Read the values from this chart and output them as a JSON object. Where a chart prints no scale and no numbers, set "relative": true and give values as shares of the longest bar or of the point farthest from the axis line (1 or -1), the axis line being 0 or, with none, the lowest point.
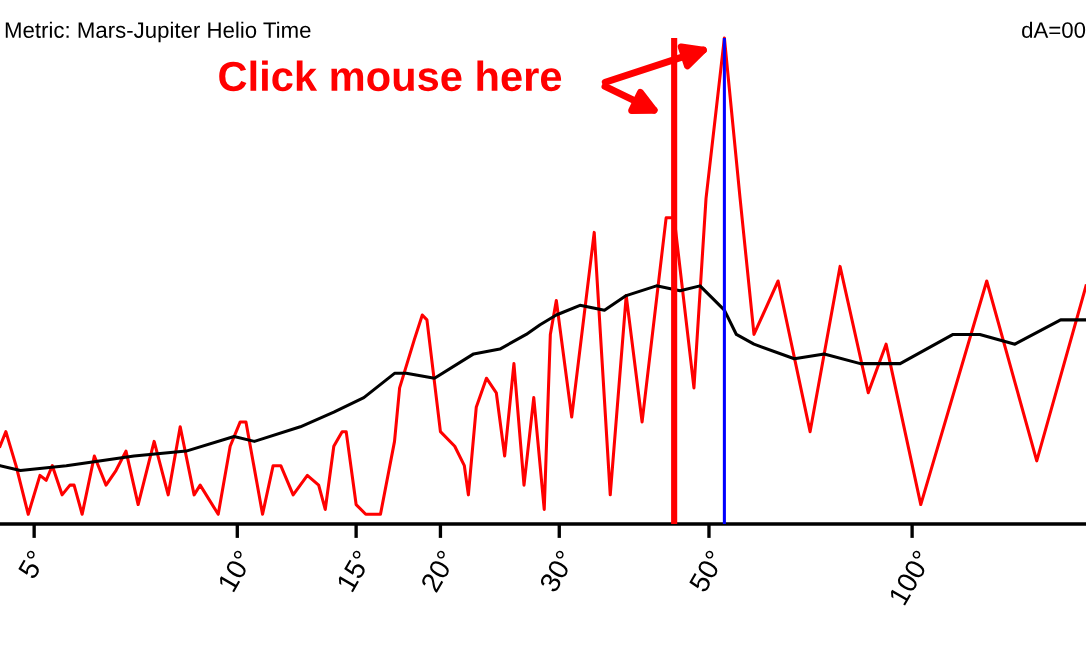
{
  "chart_data": {
    "type": "line",
    "title": "Metric: Mars-Jupiter Helio Time",
    "relative": true,
    "log": "x",
    "xlim": [
      4.45,
      181
    ],
    "xticks": [
      {
        "value": 5,
        "label": "5°"
      },
      {
        "value": 10,
        "label": "10°"
      },
      {
        "value": 15,
        "label": "15°"
      },
      {
        "value": 20,
        "label": "20°"
      },
      {
        "value": 30,
        "label": "30°"
      },
      {
        "value": 50,
        "label": "50°"
      },
      {
        "value": 100,
        "label": "100°"
      }
    ],
    "tick_labels": "x",
    "grid": false,
    "marker": "none",
    "line_style": "solid",
    "series": [
      {
        "color": "#ff0000",
        "x": [
          4.45,
          4.54,
          4.7,
          4.9,
          5.1,
          5.21,
          5.32,
          5.5,
          5.65,
          5.73,
          5.89,
          6.14,
          6.39,
          6.61,
          6.84,
          7.13,
          7.53,
          7.9,
          8.23,
          8.63,
          8.81,
          9.37,
          9.76,
          10.1,
          10.3,
          10.9,
          11.3,
          11.6,
          12.1,
          12.7,
          13.2,
          13.5,
          13.9,
          14.3,
          14.5,
          15.0,
          15.5,
          16.3,
          17.1,
          17.4,
          18.3,
          18.8,
          19.1,
          20.0,
          21.0,
          21.7,
          22.0,
          22.6,
          23.4,
          24.2,
          24.9,
          25.7,
          26.6,
          27.5,
          28.5,
          29.1,
          29.7,
          31.3,
          33.8,
          35.7,
          37.7,
          39.8,
          43.2,
          44.4,
          47.5,
          49.5,
          52.7,
          55.6,
          58.3,
          63.3,
          70.6,
          78.2,
          86.1,
          91.5,
          103,
          129,
          153,
          181
        ],
        "values": [
          0.16,
          0.19,
          0.12,
          0.02,
          0.1,
          0.09,
          0.12,
          0.06,
          0.08,
          0.08,
          0.02,
          0.14,
          0.08,
          0.11,
          0.15,
          0.04,
          0.17,
          0.06,
          0.2,
          0.06,
          0.08,
          0.02,
          0.16,
          0.21,
          0.21,
          0.02,
          0.12,
          0.12,
          0.06,
          0.1,
          0.08,
          0.03,
          0.16,
          0.19,
          0.19,
          0.04,
          0.02,
          0.02,
          0.17,
          0.28,
          0.38,
          0.43,
          0.42,
          0.19,
          0.16,
          0.12,
          0.06,
          0.24,
          0.3,
          0.27,
          0.14,
          0.33,
          0.08,
          0.26,
          0.03,
          0.39,
          0.46,
          0.22,
          0.6,
          0.06,
          0.47,
          0.21,
          0.63,
          0.63,
          0.28,
          0.67,
          1.0,
          0.67,
          0.39,
          0.5,
          0.19,
          0.53,
          0.27,
          0.37,
          0.04,
          0.5,
          0.13,
          0.49
        ]
      },
      {
        "color": "#000000",
        "x": [
          4.45,
          4.77,
          5.58,
          7.03,
          8.4,
          9.89,
          10.6,
          12.4,
          13.9,
          15.4,
          17.1,
          17.8,
          19.6,
          22.4,
          24.5,
          26.8,
          28.1,
          29.7,
          32.2,
          35.0,
          37.7,
          41.8,
          45.3,
          48.5,
          52.7,
          54.9,
          58.3,
          66.9,
          74.1,
          83.8,
          96.0,
          115,
          126,
          142,
          166,
          181
        ],
        "values": [
          0.12,
          0.11,
          0.12,
          0.14,
          0.15,
          0.18,
          0.17,
          0.2,
          0.23,
          0.26,
          0.31,
          0.31,
          0.3,
          0.35,
          0.36,
          0.39,
          0.41,
          0.43,
          0.45,
          0.44,
          0.47,
          0.49,
          0.48,
          0.49,
          0.44,
          0.39,
          0.37,
          0.34,
          0.35,
          0.33,
          0.33,
          0.39,
          0.39,
          0.37,
          0.42,
          0.42
        ]
      }
    ],
    "ref_lines": [
      {
        "axis": "x",
        "value": 44.4,
        "color": "#ff0000",
        "line_style": "solid"
      },
      {
        "axis": "x",
        "value": 52.7,
        "color": "#0000ff",
        "line_style": "solid"
      }
    ],
    "annotations": [
      "Click mouse here",
      "dA=00"
    ]
  }
}
